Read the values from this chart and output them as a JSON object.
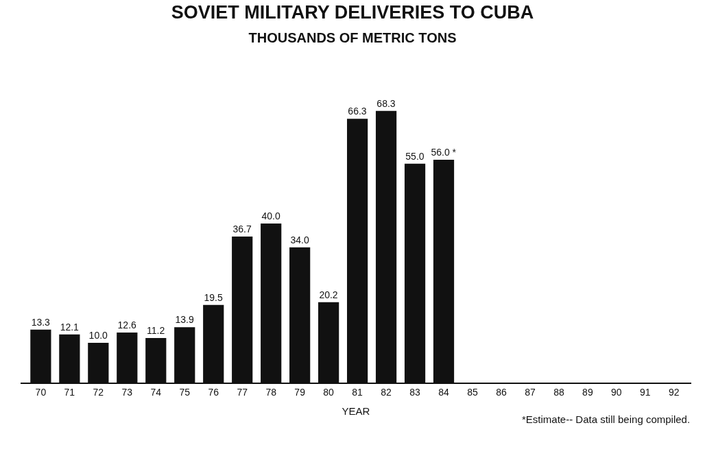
{
  "chart_data": {
    "type": "bar",
    "title": "SOVIET MILITARY DELIVERIES TO CUBA",
    "subtitle": "THOUSANDS OF METRIC TONS",
    "xlabel": "YEAR",
    "categories": [
      "70",
      "71",
      "72",
      "73",
      "74",
      "75",
      "76",
      "77",
      "78",
      "79",
      "80",
      "81",
      "82",
      "83",
      "84",
      "85",
      "86",
      "87",
      "88",
      "89",
      "90",
      "91",
      "92"
    ],
    "values": [
      13.3,
      12.1,
      10.0,
      12.6,
      11.2,
      13.9,
      19.5,
      36.7,
      40.0,
      34.0,
      20.2,
      66.3,
      68.3,
      55.0,
      56.0,
      null,
      null,
      null,
      null,
      null,
      null,
      null,
      null
    ],
    "value_labels": [
      "13.3",
      "12.1",
      "10.0",
      "12.6",
      "11.2",
      "13.9",
      "19.5",
      "36.7",
      "40.0",
      "34.0",
      "20.2",
      "66.3",
      "68.3",
      "55.0",
      "56.0 *",
      null,
      null,
      null,
      null,
      null,
      null,
      null,
      null
    ],
    "color": "#111111",
    "annotations": [
      "*Estimate-- Data still being compiled."
    ],
    "grid": false,
    "legend": false
  }
}
